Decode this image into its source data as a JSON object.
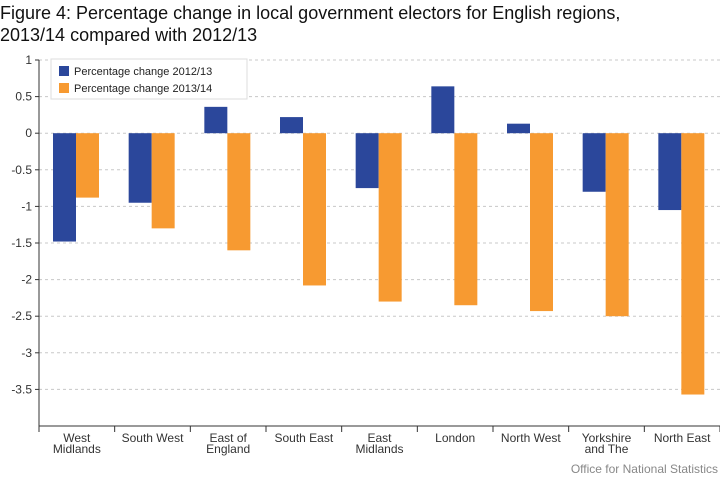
{
  "title_lines": [
    "Figure 4: Percentage change in local government electors for English regions,",
    "2013/14 compared with 2012/13"
  ],
  "source": "Office for National Statistics",
  "chart_data": {
    "type": "bar",
    "categories": [
      [
        "West",
        "Midlands"
      ],
      [
        "South West"
      ],
      [
        "East of",
        "England"
      ],
      [
        "South East"
      ],
      [
        "East",
        "Midlands"
      ],
      [
        "London"
      ],
      [
        "North West"
      ],
      [
        "Yorkshire",
        "and The"
      ],
      [
        "North East"
      ]
    ],
    "series": [
      {
        "name": "Percentage change 2012/13",
        "color": "#2b479b",
        "values": [
          -1.48,
          -0.95,
          0.36,
          0.22,
          -0.75,
          0.64,
          0.13,
          -0.8,
          -1.05
        ]
      },
      {
        "name": "Percentage change 2013/14",
        "color": "#f79a31",
        "values": [
          -0.88,
          -1.3,
          -1.6,
          -2.08,
          -2.3,
          -2.35,
          -2.43,
          -2.5,
          -3.57
        ]
      }
    ],
    "ylim": [
      -4,
      1
    ],
    "yticks": [
      1,
      0.5,
      0,
      -0.5,
      -1,
      -1.5,
      -2,
      -2.5,
      -3,
      -3.5
    ],
    "ytick_labels": [
      "1",
      "0.5",
      "0",
      "-0.5",
      "-1",
      "-1.5",
      "-2",
      "-2.5",
      "-3",
      "-3.5"
    ],
    "grid": true,
    "legend_position": "top-left"
  }
}
